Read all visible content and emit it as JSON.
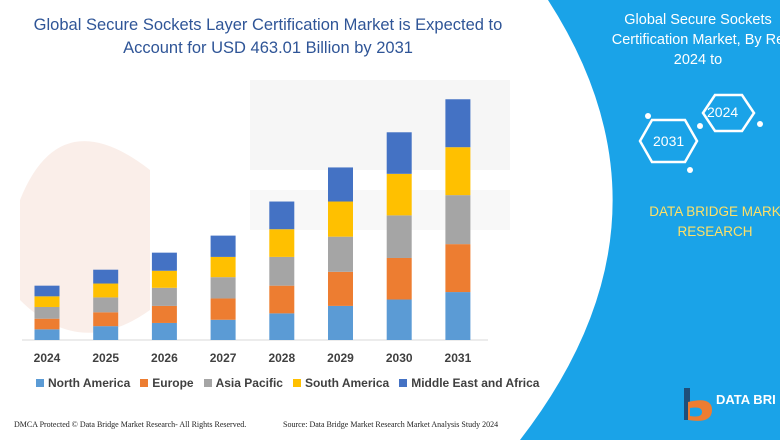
{
  "title": "Global Secure Sockets Layer Certification Market is Expected to Account for USD 463.01 Billion by 2031",
  "chart_data": {
    "type": "bar",
    "stacked": true,
    "categories": [
      "2024",
      "2025",
      "2026",
      "2027",
      "2028",
      "2029",
      "2030",
      "2031"
    ],
    "series": [
      {
        "name": "North America",
        "color": "#5b9bd5",
        "values": [
          10,
          13,
          16,
          19,
          25,
          32,
          38,
          45
        ]
      },
      {
        "name": "Europe",
        "color": "#ed7d31",
        "values": [
          10,
          13,
          16,
          20,
          26,
          32,
          39,
          45
        ]
      },
      {
        "name": "Asia Pacific",
        "color": "#a5a5a5",
        "values": [
          11,
          14,
          17,
          20,
          27,
          33,
          40,
          46
        ]
      },
      {
        "name": "South America",
        "color": "#ffc000",
        "values": [
          10,
          13,
          16,
          19,
          26,
          33,
          39,
          45
        ]
      },
      {
        "name": "Middle East and Africa",
        "color": "#4472c4",
        "values": [
          10,
          13,
          17,
          20,
          26,
          32,
          39,
          45
        ]
      }
    ],
    "legend_position": "bottom",
    "grid": false,
    "y_axis_visible": false,
    "ylim": [
      0,
      230
    ]
  },
  "footer": {
    "left": "DMCA Protected © Data Bridge Market Research-  All Rights Reserved.",
    "right": "Source: Data Bridge Market Research  Market Analysis Study 2024"
  },
  "side_panel": {
    "title_lines": [
      "Global Secure Sockets",
      "Certification Market, By Re",
      "2024 to"
    ],
    "hex_2024": "2024",
    "hex_2031": "2031",
    "brand_lines": [
      "DATA BRIDGE MARK",
      "RESEARCH"
    ],
    "logo_text": "DATA BRI",
    "panel_color": "#1aa3e8"
  }
}
